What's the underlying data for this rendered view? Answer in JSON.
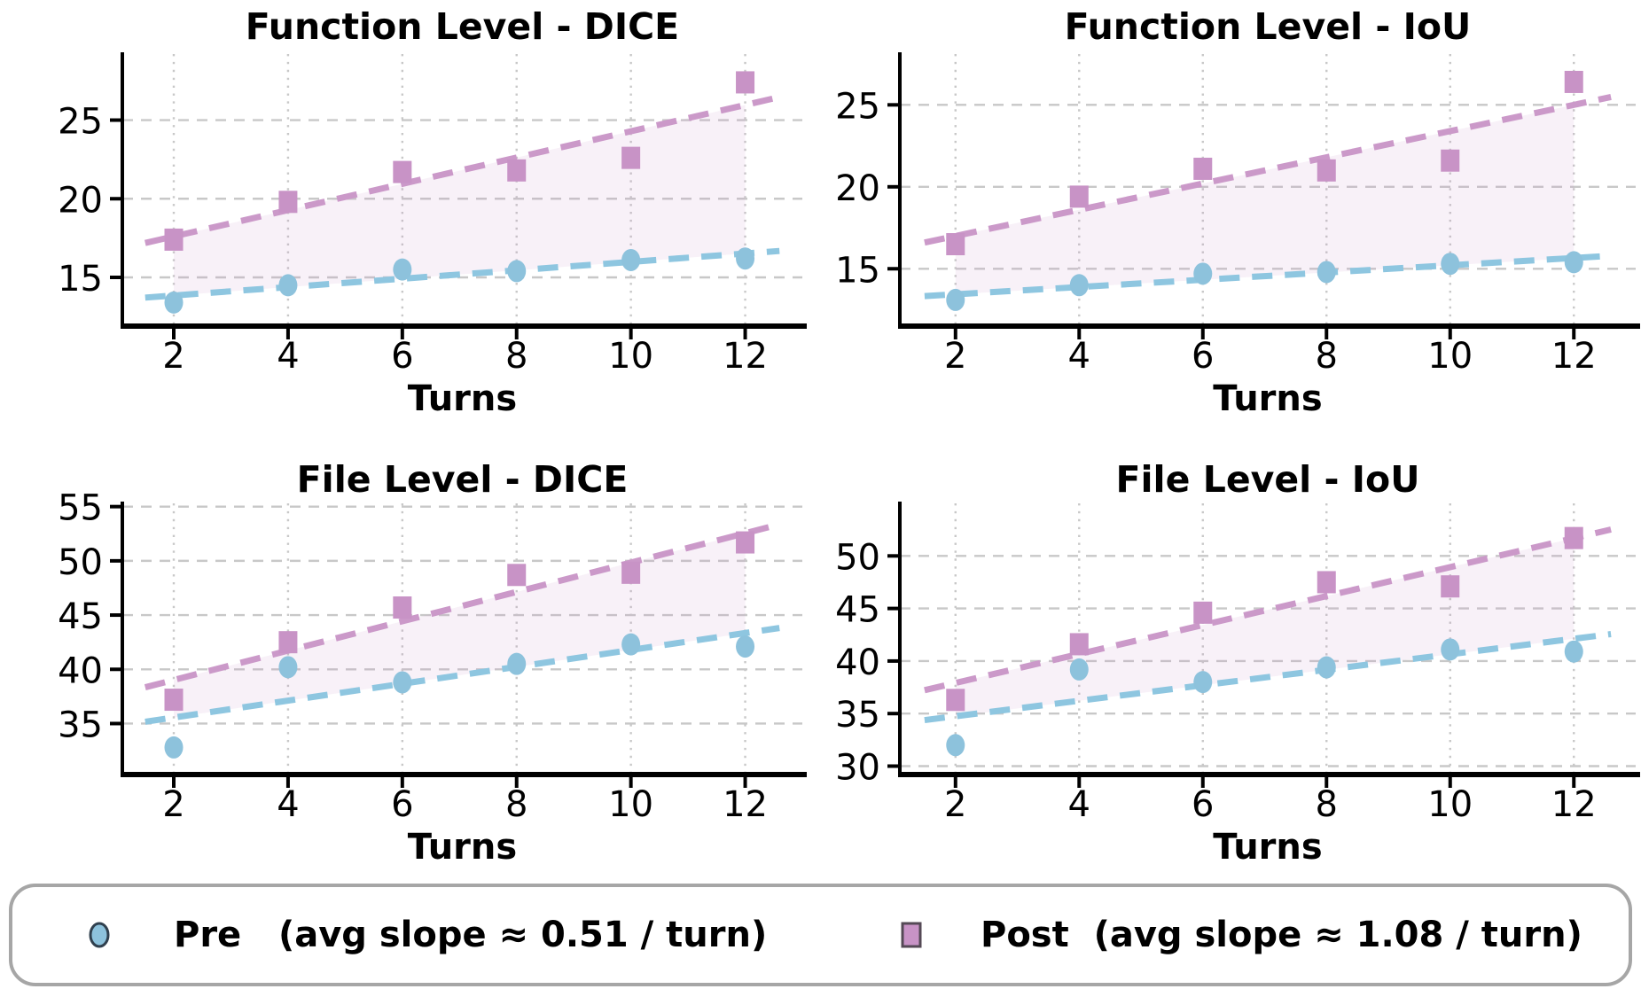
{
  "figure": {
    "xlabel": "Turns"
  },
  "colors": {
    "pre": "#8dc2dc",
    "post": "#c893c6",
    "pre_trend": "#8ec6e0",
    "post_trend": "#cb99c9",
    "fill_between": "#c893c6",
    "fill_opacity": 0.13,
    "grid": "#c8c8c8",
    "axis": "#000000",
    "text": "#000000",
    "legend_border": "#a6a6a6",
    "pre_marker_edge": "#30404e",
    "post_marker_edge": "#554a56"
  },
  "legend": {
    "pre_label": "Pre   (avg slope ≈ 0.51 / turn)",
    "post_label": "Post  (avg slope ≈ 1.08 / turn)",
    "pre_marker": "circle",
    "post_marker": "square"
  },
  "chart_data": [
    {
      "type": "scatter",
      "title": "Function Level - DICE",
      "xlabel": "Turns",
      "x": [
        2,
        4,
        6,
        8,
        10,
        12
      ],
      "series": [
        {
          "name": "Pre",
          "marker": "circle",
          "values": [
            13.4,
            14.5,
            15.5,
            15.4,
            16.1,
            16.2
          ]
        },
        {
          "name": "Post",
          "marker": "square",
          "values": [
            17.4,
            19.8,
            21.7,
            21.8,
            22.6,
            27.4
          ]
        }
      ],
      "xticks": [
        2,
        4,
        6,
        8,
        10,
        12
      ],
      "yticks": [
        15,
        20,
        25
      ],
      "xlim": [
        1.1,
        13.0
      ],
      "ylim": [
        11.9,
        29.2
      ],
      "grid": true,
      "trend": "linear-fit",
      "trend_x_span": [
        1.5,
        12.6
      ],
      "fill_between_trends_x": [
        2,
        12
      ],
      "legend_position": "none"
    },
    {
      "type": "scatter",
      "title": "Function Level - IoU",
      "xlabel": "Turns",
      "x": [
        2,
        4,
        6,
        8,
        10,
        12
      ],
      "series": [
        {
          "name": "Pre",
          "marker": "circle",
          "values": [
            13.1,
            14.0,
            14.7,
            14.8,
            15.3,
            15.4
          ]
        },
        {
          "name": "Post",
          "marker": "square",
          "values": [
            16.5,
            19.4,
            21.1,
            21.0,
            21.6,
            26.4
          ]
        }
      ],
      "xticks": [
        2,
        4,
        6,
        8,
        10,
        12
      ],
      "yticks": [
        15,
        20,
        25
      ],
      "xlim": [
        1.1,
        13.0
      ],
      "ylim": [
        11.5,
        28.1
      ],
      "grid": true,
      "trend": "linear-fit",
      "trend_x_span": [
        1.5,
        12.6
      ],
      "fill_between_trends_x": [
        2,
        12
      ],
      "legend_position": "none"
    },
    {
      "type": "scatter",
      "title": "File Level - DICE",
      "xlabel": "Turns",
      "x": [
        2,
        4,
        6,
        8,
        10,
        12
      ],
      "series": [
        {
          "name": "Pre",
          "marker": "circle",
          "values": [
            32.8,
            40.2,
            38.8,
            40.5,
            42.3,
            42.1
          ]
        },
        {
          "name": "Post",
          "marker": "square",
          "values": [
            37.2,
            42.5,
            45.7,
            48.7,
            48.9,
            51.7
          ]
        }
      ],
      "xticks": [
        2,
        4,
        6,
        8,
        10,
        12
      ],
      "yticks": [
        35,
        40,
        45,
        50,
        55
      ],
      "xlim": [
        1.1,
        13.0
      ],
      "ylim": [
        30.3,
        55.3
      ],
      "grid": true,
      "trend": "linear-fit",
      "trend_x_span": [
        1.5,
        12.6
      ],
      "fill_between_trends_x": [
        2,
        12
      ],
      "legend_position": "none"
    },
    {
      "type": "scatter",
      "title": "File Level - IoU",
      "xlabel": "Turns",
      "x": [
        2,
        4,
        6,
        8,
        10,
        12
      ],
      "series": [
        {
          "name": "Pre",
          "marker": "circle",
          "values": [
            32.0,
            39.2,
            38.0,
            39.4,
            41.1,
            40.9
          ]
        },
        {
          "name": "Post",
          "marker": "square",
          "values": [
            36.3,
            41.6,
            44.6,
            47.5,
            47.1,
            51.7
          ]
        }
      ],
      "xticks": [
        2,
        4,
        6,
        8,
        10,
        12
      ],
      "yticks": [
        30,
        35,
        40,
        45,
        50
      ],
      "xlim": [
        1.1,
        13.0
      ],
      "ylim": [
        29.2,
        55.0
      ],
      "grid": true,
      "trend": "linear-fit",
      "trend_x_span": [
        1.5,
        12.6
      ],
      "fill_between_trends_x": [
        2,
        12
      ],
      "legend_position": "none"
    }
  ]
}
